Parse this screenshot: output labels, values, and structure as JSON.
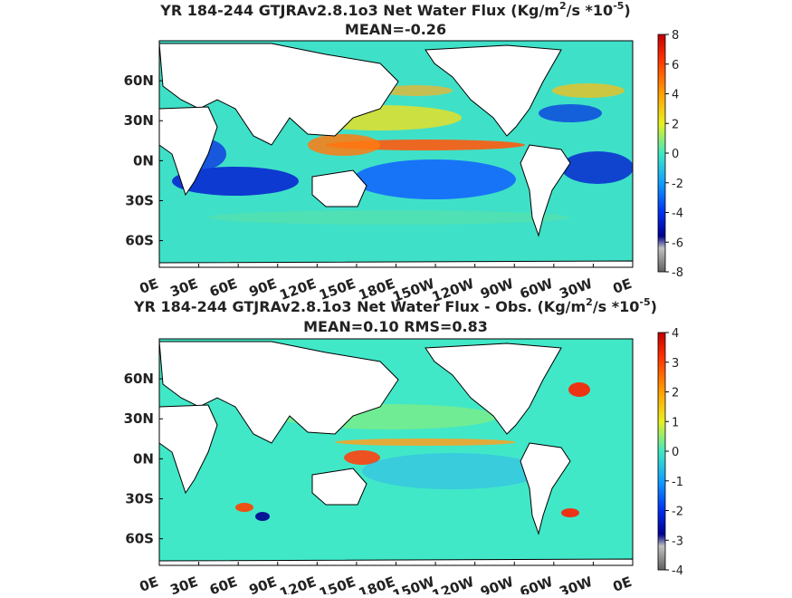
{
  "chart_data": [
    {
      "type": "heatmap",
      "title_prefix": "YR 184-244 GTJRAv2.8.1o3  Net Water Flux (Kg/m",
      "title_sup1": "2",
      "title_mid": "/s *10",
      "title_sup2": "-5",
      "title_suffix": ")",
      "subtitle": "MEAN=-0.26",
      "x_ticks": [
        "0E",
        "30E",
        "60E",
        "90E",
        "120E",
        "150E",
        "180E",
        "150W",
        "120W",
        "90W",
        "60W",
        "30W",
        "0E"
      ],
      "y_ticks": [
        "60N",
        "30N",
        "0N",
        "30S",
        "60S"
      ],
      "y_tick_lat": [
        60,
        30,
        0,
        -30,
        -60
      ],
      "xlim": [
        0,
        360
      ],
      "ylim": [
        -80,
        90
      ],
      "colorbar_ticks": [
        "8",
        "6",
        "4",
        "2",
        "0",
        "-2",
        "-4",
        "-6",
        "-8"
      ],
      "colorbar_range": [
        -8,
        8
      ]
    },
    {
      "type": "heatmap",
      "title_prefix": "YR 184-244 GTJRAv2.8.1o3  Net Water Flux - Obs. (Kg/m",
      "title_sup1": "2",
      "title_mid": "/s *10",
      "title_sup2": "-5",
      "title_suffix": ")",
      "subtitle": "MEAN=0.10 RMS=0.83",
      "x_ticks": [
        "0E",
        "30E",
        "60E",
        "90E",
        "120E",
        "150E",
        "180E",
        "150W",
        "120W",
        "90W",
        "60W",
        "30W",
        "0E"
      ],
      "y_ticks": [
        "60N",
        "30N",
        "0N",
        "30S",
        "60S"
      ],
      "y_tick_lat": [
        60,
        30,
        0,
        -30,
        -60
      ],
      "xlim": [
        0,
        360
      ],
      "ylim": [
        -80,
        90
      ],
      "colorbar_ticks": [
        "4",
        "3",
        "2",
        "1",
        "0",
        "-1",
        "-2",
        "-3",
        "-4"
      ],
      "colorbar_range": [
        -4,
        4
      ]
    }
  ],
  "colors": {
    "ocean_base": "#3fe0c8",
    "land": "#ffffff",
    "coast": "#000000"
  }
}
